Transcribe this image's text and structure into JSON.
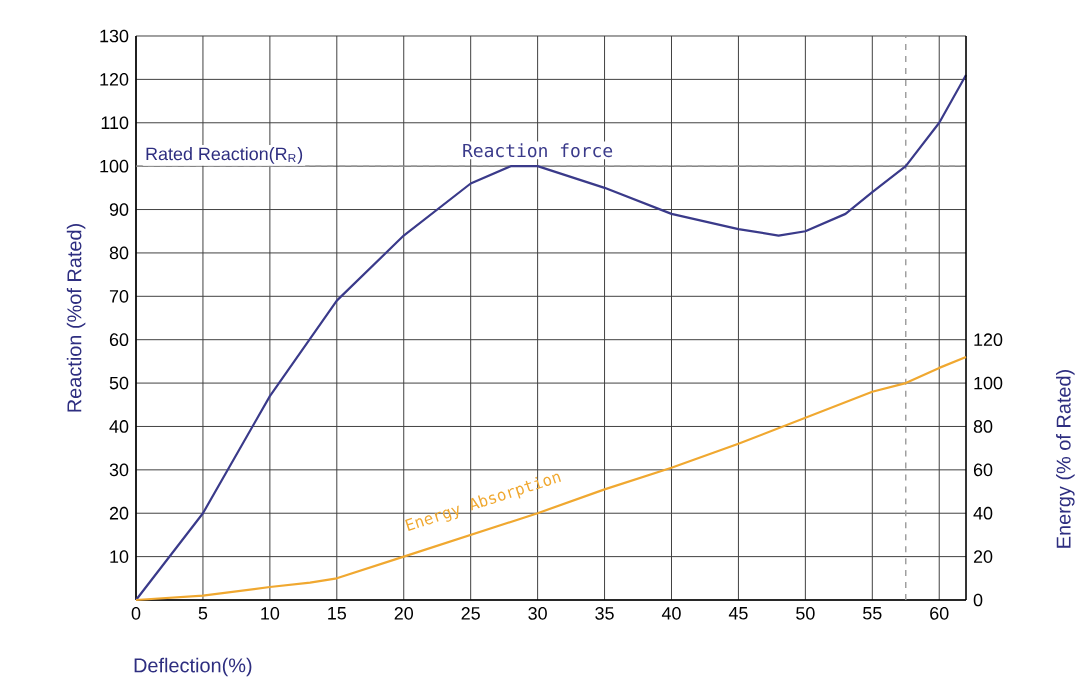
{
  "chart_data": {
    "type": "line",
    "xlabel": "Deflection(%)",
    "ylabel": "Reaction (%of Rated)",
    "y2label": "Energy (% of Rated)",
    "xlim": [
      0,
      62
    ],
    "xticks": [
      0,
      5,
      10,
      15,
      20,
      25,
      30,
      35,
      40,
      45,
      50,
      55,
      60
    ],
    "ylim": [
      0,
      130
    ],
    "yticks": [
      {
        "value": 0,
        "label": null
      },
      10,
      20,
      30,
      40,
      50,
      60,
      70,
      80,
      90,
      100,
      110,
      120,
      130
    ],
    "y2lim": [
      0,
      260
    ],
    "y2ticks": [
      0,
      20,
      40,
      60,
      80,
      100,
      120
    ],
    "grid": true,
    "series": [
      {
        "name": "Reaction force",
        "color": "#3a3a8a",
        "x": [
          0,
          5,
          10,
          15,
          20,
          25,
          28,
          30,
          35,
          40,
          45,
          48,
          50,
          53,
          55,
          57.5,
          60,
          62
        ],
        "values": [
          0,
          20,
          47,
          69,
          84,
          96,
          100,
          100,
          95,
          89,
          85.5,
          84,
          85,
          89,
          94,
          100,
          110,
          121
        ]
      },
      {
        "name": "Energy Absorption",
        "color": "#f0a830",
        "axis": "y2",
        "x": [
          0,
          5,
          10,
          13,
          15,
          20,
          25,
          30,
          35,
          40,
          45,
          50,
          55,
          57.5,
          60,
          62
        ],
        "values": [
          0,
          2,
          6,
          8,
          10,
          20,
          30,
          40,
          51,
          61,
          72,
          84,
          96,
          100,
          107,
          112
        ]
      }
    ],
    "ref_lines": [
      {
        "axis": "y",
        "value": 100,
        "label": "Rated Reaction(R$_{R}$)",
        "color": "#999999",
        "line_style": "dashed"
      },
      {
        "axis": "x",
        "value": 57.5,
        "color": "#999999",
        "line_style": "dashed"
      }
    ]
  }
}
